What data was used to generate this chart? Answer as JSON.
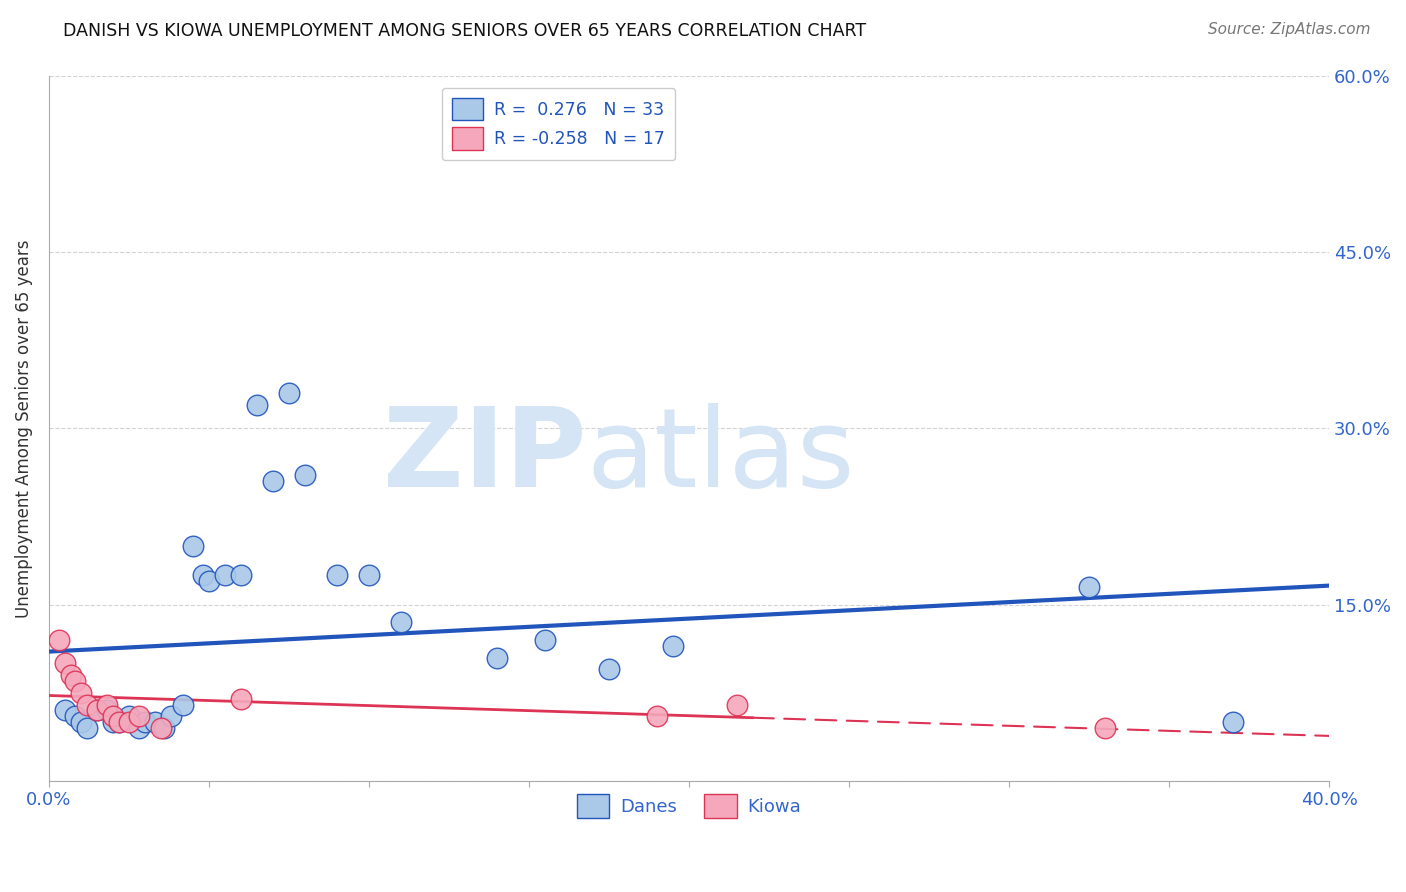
{
  "title": "DANISH VS KIOWA UNEMPLOYMENT AMONG SENIORS OVER 65 YEARS CORRELATION CHART",
  "source": "Source: ZipAtlas.com",
  "ylabel": "Unemployment Among Seniors over 65 years",
  "xlim": [
    0.0,
    0.4
  ],
  "ylim": [
    0.0,
    0.6
  ],
  "xticks": [
    0.0,
    0.05,
    0.1,
    0.15,
    0.2,
    0.25,
    0.3,
    0.35,
    0.4
  ],
  "xticklabels": [
    "0.0%",
    "",
    "",
    "",
    "",
    "",
    "",
    "",
    "40.0%"
  ],
  "yticks": [
    0.0,
    0.15,
    0.3,
    0.45,
    0.6
  ],
  "yticklabels": [
    "",
    "15.0%",
    "30.0%",
    "45.0%",
    "60.0%"
  ],
  "danes_x": [
    0.005,
    0.008,
    0.01,
    0.012,
    0.015,
    0.018,
    0.02,
    0.022,
    0.025,
    0.028,
    0.03,
    0.033,
    0.036,
    0.038,
    0.042,
    0.045,
    0.048,
    0.05,
    0.055,
    0.06,
    0.065,
    0.07,
    0.075,
    0.08,
    0.09,
    0.1,
    0.11,
    0.14,
    0.155,
    0.175,
    0.195,
    0.325,
    0.37
  ],
  "danes_y": [
    0.06,
    0.055,
    0.05,
    0.045,
    0.06,
    0.06,
    0.05,
    0.05,
    0.055,
    0.045,
    0.05,
    0.05,
    0.045,
    0.055,
    0.065,
    0.2,
    0.175,
    0.17,
    0.175,
    0.175,
    0.32,
    0.255,
    0.33,
    0.26,
    0.175,
    0.175,
    0.135,
    0.105,
    0.12,
    0.095,
    0.115,
    0.165,
    0.05
  ],
  "kiowa_x": [
    0.003,
    0.005,
    0.007,
    0.008,
    0.01,
    0.012,
    0.015,
    0.018,
    0.02,
    0.022,
    0.025,
    0.028,
    0.035,
    0.06,
    0.19,
    0.215,
    0.33
  ],
  "kiowa_y": [
    0.12,
    0.1,
    0.09,
    0.085,
    0.075,
    0.065,
    0.06,
    0.065,
    0.055,
    0.05,
    0.05,
    0.055,
    0.045,
    0.07,
    0.055,
    0.065,
    0.045
  ],
  "danes_color": "#aac8e8",
  "kiowa_color": "#f5a8bc",
  "danes_line_color": "#2255bb",
  "kiowa_line_color": "#dd3355",
  "danes_R": 0.276,
  "danes_N": 33,
  "kiowa_R": -0.258,
  "kiowa_N": 17,
  "background_color": "#ffffff",
  "grid_color": "#c8c8c8",
  "title_color": "#111111",
  "axis_label_color": "#333333",
  "tick_color": "#3366cc",
  "legend_frame_color": "#cccccc",
  "watermark_zip": "ZIP",
  "watermark_atlas": "atlas",
  "watermark_color": "#d5e5f5"
}
